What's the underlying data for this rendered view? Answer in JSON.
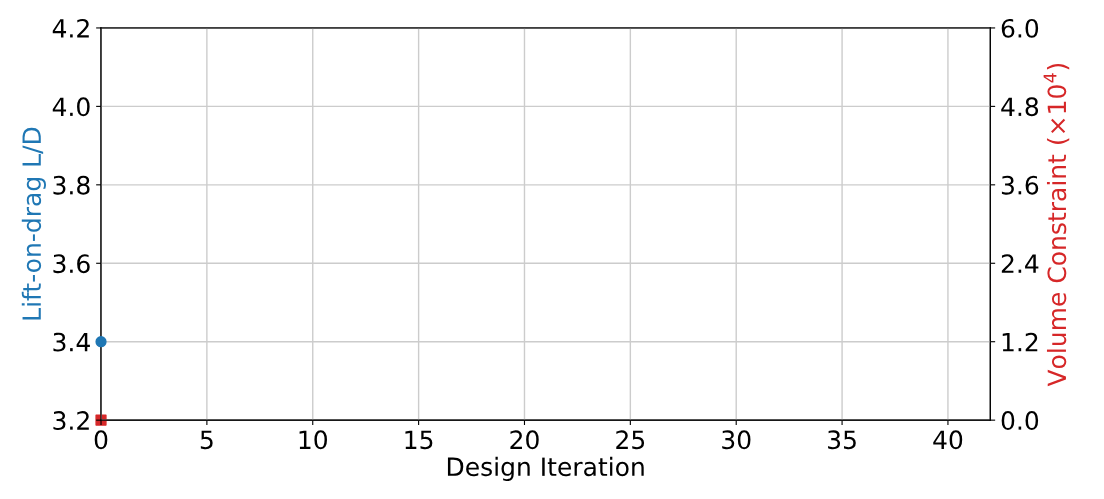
{
  "chart_data": {
    "type": "scatter",
    "xlabel": "Design Iteration",
    "ylabel": "Lift-on-drag L/D",
    "y2label": "Volume Constraint (×10$^{4}$)",
    "xlim": [
      0,
      42
    ],
    "xticks": [
      0,
      5,
      10,
      15,
      20,
      25,
      30,
      35,
      40
    ],
    "ylim": [
      3.2,
      4.2
    ],
    "yticks": [
      3.2,
      3.4,
      3.6,
      3.8,
      {
        "value": 4,
        "label": "4.0"
      },
      4.2
    ],
    "y2lim": [
      0.0,
      6.0
    ],
    "y2ticks": [
      {
        "value": 0,
        "label": "0.0"
      },
      1.2,
      2.4,
      3.6,
      4.8,
      {
        "value": 6,
        "label": "6.0"
      }
    ],
    "grid": true,
    "series": [
      {
        "color": "#1f77b4",
        "marker": "circle",
        "x": [
          0
        ],
        "values": [
          3.4
        ]
      },
      {
        "color": "#d62728",
        "marker": "square",
        "axis": "y2",
        "x": [
          0
        ],
        "values": [
          0.0
        ]
      }
    ]
  }
}
